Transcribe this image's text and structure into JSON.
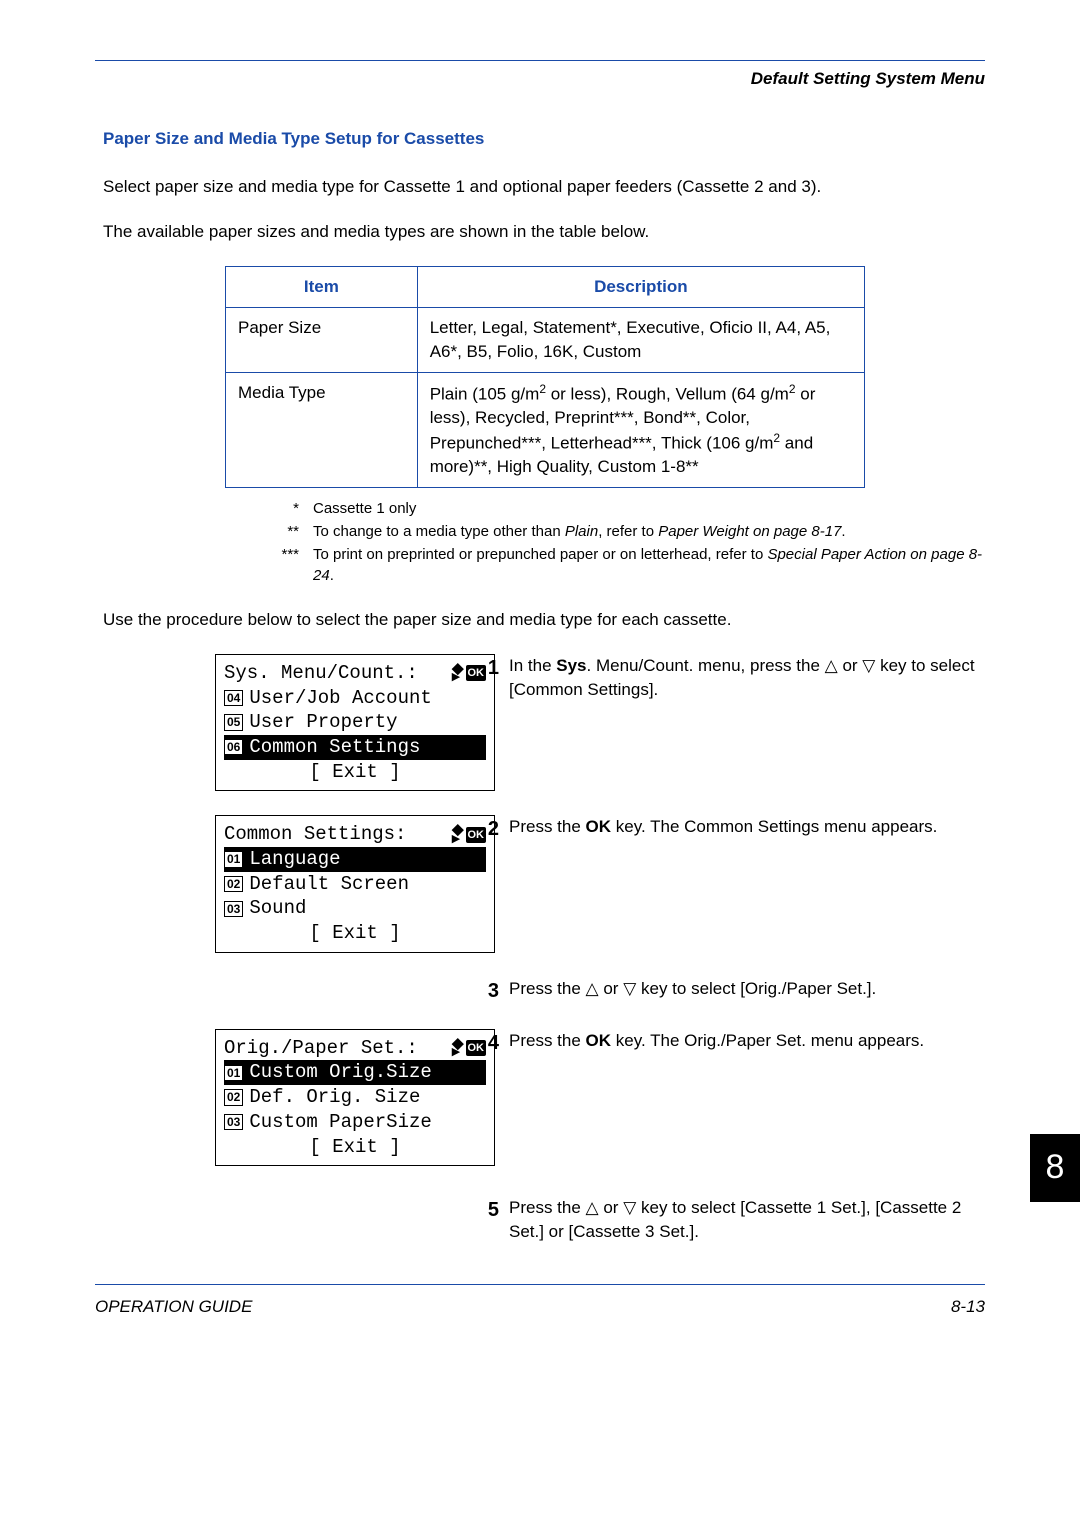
{
  "header": {
    "breadcrumb": "Default Setting System Menu"
  },
  "section": {
    "heading": "Paper Size and Media Type Setup for Cassettes",
    "p1": "Select paper size and media type for Cassette 1 and optional paper feeders (Cassette 2 and 3).",
    "p2": "The available paper sizes and media types are shown in the table below.",
    "p3": "Use the procedure below to select the paper size and media type for each cassette."
  },
  "table": {
    "columns": [
      "Item",
      "Description"
    ],
    "col_widths": [
      "30%",
      "70%"
    ],
    "rows": [
      {
        "item": "Paper Size",
        "desc": "Letter, Legal, Statement*, Executive, Oficio II, A4, A5, A6*, B5, Folio, 16K, Custom"
      },
      {
        "item": "Media Type",
        "desc_html": "Plain (105 g/m<span class='sup'>2</span> or less), Rough, Vellum (64 g/m<span class='sup'>2</span> or less), Recycled, Preprint***, Bond**, Color, Prepunched***, Letterhead***, Thick (106 g/m<span class='sup'>2</span> and more)**, High Quality, Custom 1-8**"
      }
    ],
    "border_color": "#1a4ba8",
    "header_color": "#1a4ba8"
  },
  "footnotes": [
    {
      "sym": "*",
      "txt": "Cassette 1 only"
    },
    {
      "sym": "**",
      "txt": "To change to a media type other than <em>Plain</em>, refer to <em>Paper Weight on page 8-17</em>."
    },
    {
      "sym": "***",
      "txt": "To print on preprinted or prepunched paper or on letterhead, refer to <em>Special Paper Action on page 8-24</em>."
    }
  ],
  "lcds": {
    "menu1": {
      "title": "Sys. Menu/Count.:",
      "items": [
        {
          "n": "04",
          "label": "User/Job Account",
          "hl": false
        },
        {
          "n": "05",
          "label": "User Property",
          "hl": false
        },
        {
          "n": "06",
          "label": "Common Settings",
          "hl": true
        }
      ],
      "exit": "[  Exit   ]"
    },
    "menu2": {
      "title": "Common Settings:",
      "items": [
        {
          "n": "01",
          "label": "Language",
          "hl": true
        },
        {
          "n": "02",
          "label": "Default Screen",
          "hl": false
        },
        {
          "n": "03",
          "label": "Sound",
          "hl": false
        }
      ],
      "exit": "[  Exit   ]"
    },
    "menu3": {
      "title": "Orig./Paper Set.:",
      "items": [
        {
          "n": "01",
          "label": "Custom Orig.Size",
          "hl": true
        },
        {
          "n": "02",
          "label": "Def. Orig. Size",
          "hl": false
        },
        {
          "n": "03",
          "label": "Custom PaperSize",
          "hl": false
        }
      ],
      "exit": "[  Exit   ]"
    }
  },
  "steps": {
    "s1": {
      "num": "1",
      "html": "In the <b>Sys</b>. Menu/Count. menu, press the <span class='tri'>△</span> or <span class='tri'>▽</span> key to select [Common Settings]."
    },
    "s2": {
      "num": "2",
      "html": "Press the <b>OK</b> key. The Common Settings menu appears."
    },
    "s3": {
      "num": "3",
      "html": "Press the <span class='tri'>△</span> or <span class='tri'>▽</span> key to select [Orig./Paper Set.]."
    },
    "s4": {
      "num": "4",
      "html": "Press the <b>OK</b> key. The Orig./Paper Set. menu appears."
    },
    "s5": {
      "num": "5",
      "html": "Press the <span class='tri'>△</span> or <span class='tri'>▽</span> key to select [Cassette 1 Set.], [Cassette 2 Set.] or [Cassette 3 Set.]."
    }
  },
  "chapter_number": "8",
  "footer": {
    "left": "OPERATION GUIDE",
    "right": "8-13"
  },
  "colors": {
    "accent": "#1a4ba8",
    "text": "#000000",
    "bg": "#ffffff"
  }
}
